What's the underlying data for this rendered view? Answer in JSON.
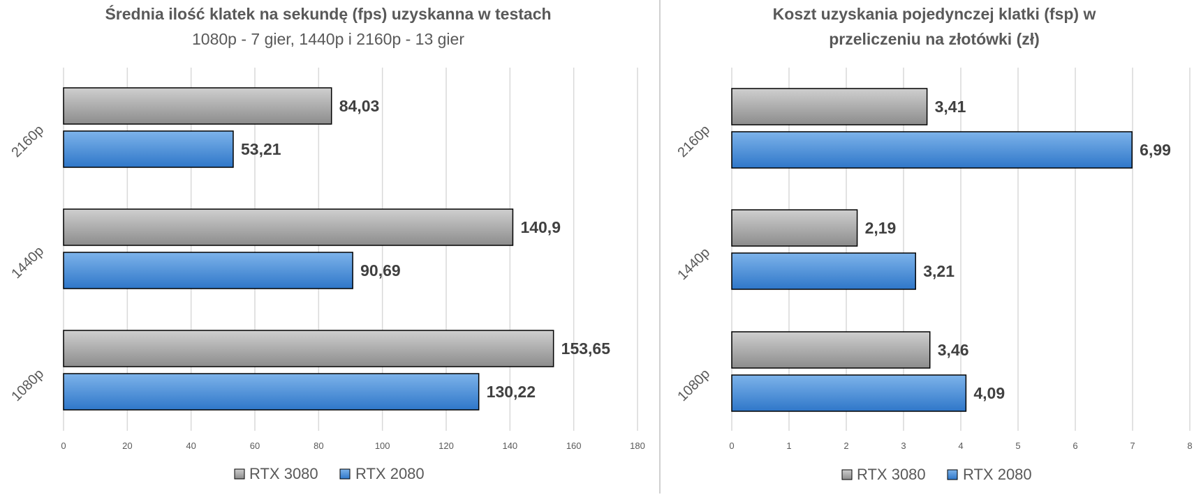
{
  "chart_data": [
    {
      "type": "bar",
      "orientation": "horizontal",
      "title": "Średnia ilość klatek na sekundę (fps) uzyskanna w testach",
      "subtitle": "1080p - 7 gier, 1440p i 2160p - 13 gier",
      "categories": [
        "2160p",
        "1440p",
        "1080p"
      ],
      "series": [
        {
          "name": "RTX 3080",
          "values": [
            84.03,
            140.9,
            153.65
          ],
          "labels": [
            "84,03",
            "140,9",
            "153,65"
          ],
          "color": "#a6a6a6"
        },
        {
          "name": "RTX 2080",
          "values": [
            53.21,
            90.69,
            130.22
          ],
          "labels": [
            "53,21",
            "90,69",
            "130,22"
          ],
          "color": "#4a8fd9"
        }
      ],
      "xlim": [
        0,
        180
      ],
      "xticks": [
        "0",
        "20",
        "40",
        "60",
        "80",
        "100",
        "120",
        "140",
        "160",
        "180"
      ],
      "grid": true,
      "legend_position": "bottom"
    },
    {
      "type": "bar",
      "orientation": "horizontal",
      "title_lines": [
        "Koszt uzyskania pojedynczej klatki (fsp) w",
        "przeliczeniu na złotówki (zł)"
      ],
      "categories": [
        "2160p",
        "1440p",
        "1080p"
      ],
      "series": [
        {
          "name": "RTX 3080",
          "values": [
            3.41,
            2.19,
            3.46
          ],
          "labels": [
            "3,41",
            "2,19",
            "3,46"
          ],
          "color": "#a6a6a6"
        },
        {
          "name": "RTX 2080",
          "values": [
            6.99,
            3.21,
            4.09
          ],
          "labels": [
            "6,99",
            "3,21",
            "4,09"
          ],
          "color": "#4a8fd9"
        }
      ],
      "xlim": [
        0,
        8
      ],
      "xticks": [
        "0",
        "1",
        "2",
        "3",
        "4",
        "5",
        "6",
        "7",
        "8"
      ],
      "grid": true,
      "legend_position": "bottom"
    }
  ]
}
